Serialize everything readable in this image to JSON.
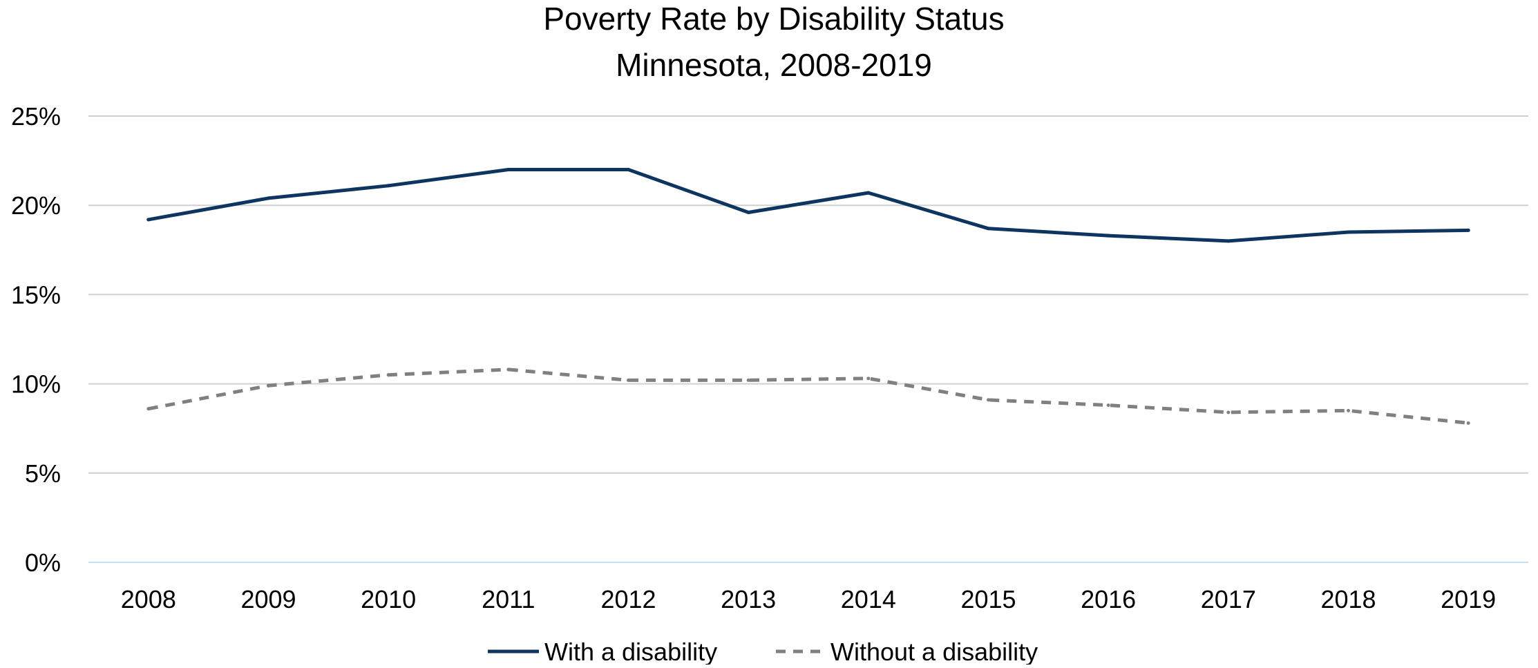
{
  "chart_data": {
    "type": "line",
    "title": "Poverty Rate by Disability Status",
    "subtitle": "Minnesota, 2008-2019",
    "xlabel": "",
    "ylabel": "",
    "categories": [
      "2008",
      "2009",
      "2010",
      "2011",
      "2012",
      "2013",
      "2014",
      "2015",
      "2016",
      "2017",
      "2018",
      "2019"
    ],
    "y_ticks": [
      0,
      5,
      10,
      15,
      20,
      25
    ],
    "y_tick_labels": [
      "0%",
      "5%",
      "10%",
      "15%",
      "20%",
      "25%"
    ],
    "ylim": [
      0,
      25
    ],
    "grid": true,
    "legend_position": "bottom",
    "series": [
      {
        "name": "With a disability",
        "color": "#0e3560",
        "style": "solid",
        "values": [
          19.2,
          20.4,
          21.1,
          22.0,
          22.0,
          19.6,
          20.7,
          18.7,
          18.3,
          18.0,
          18.5,
          18.6
        ]
      },
      {
        "name": "Without a disability",
        "color": "#808080",
        "style": "dashed",
        "values": [
          8.6,
          9.9,
          10.5,
          10.8,
          10.2,
          10.2,
          10.3,
          9.1,
          8.8,
          8.4,
          8.5,
          7.8
        ]
      }
    ],
    "colors": {
      "grid": "#d0d0d0",
      "baseline": "#bfe0f5"
    }
  }
}
